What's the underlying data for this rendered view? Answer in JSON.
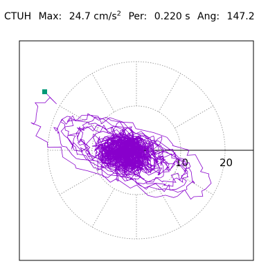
{
  "header": {
    "station": "CTUH",
    "max_label": "Max:",
    "max_value": "24.7 cm/s",
    "max_exp": "2",
    "per_label": "Per:",
    "per_value": "0.220 s",
    "ang_label": "Ang:",
    "ang_value": "147.2"
  },
  "chart_data": {
    "type": "polar-orbit",
    "title": "CTUH",
    "max_acceleration": 24.7,
    "max_unit": "cm/s^2",
    "period_s": 0.22,
    "angle_deg": 147.2,
    "radial_rings": [
      10,
      20
    ],
    "ring_labels": [
      "10",
      "20"
    ],
    "spoke_count": 12,
    "grid": "dotted",
    "trace_color": "#8800CC",
    "marker_color": "#009977",
    "marker_point": [
      -20.7,
      13.2
    ]
  }
}
